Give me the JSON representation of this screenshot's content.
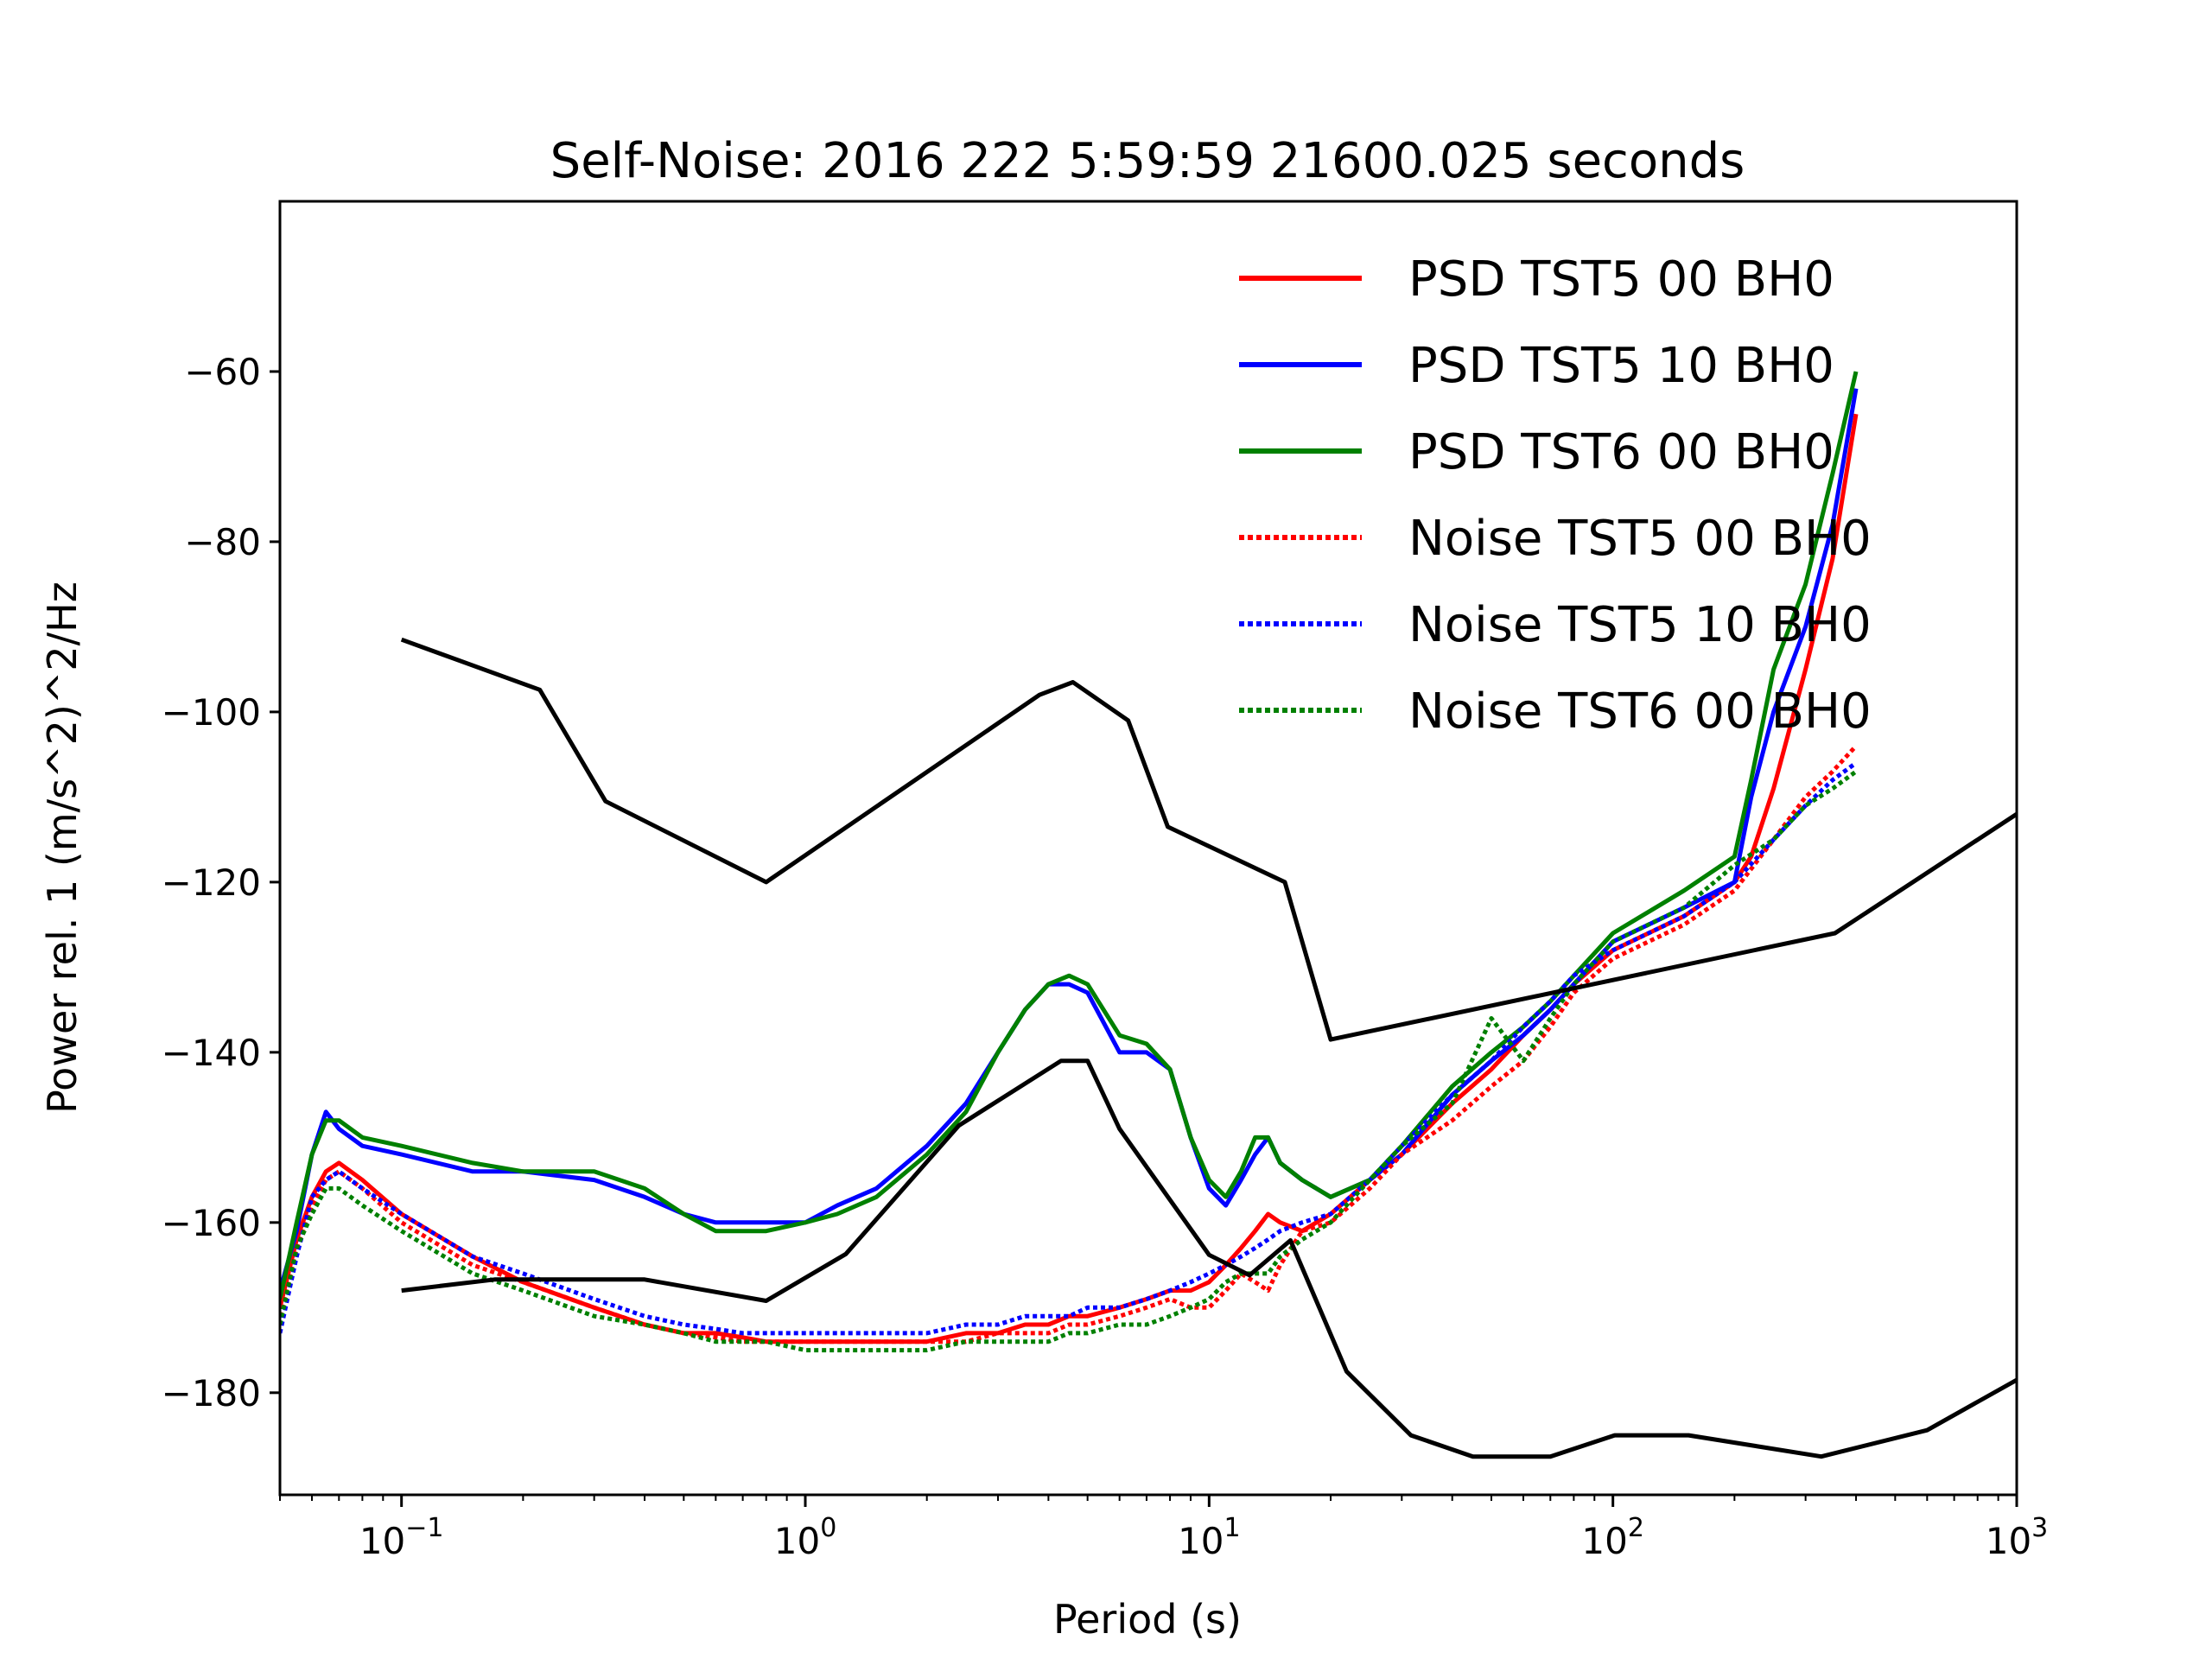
{
  "chart_data": {
    "type": "line",
    "title": "Self-Noise: 2016 222 5:59:59 21600.025 seconds",
    "xlabel": "Period (s)",
    "ylabel": "Power rel. 1 (m/s^2)^2/Hz",
    "x_scale": "log",
    "xlim": [
      0.05,
      1000
    ],
    "ylim": [
      -192,
      -40
    ],
    "x_ticks": [
      {
        "value": 0.1,
        "base": "10",
        "exp": "−1"
      },
      {
        "value": 1,
        "base": "10",
        "exp": "0"
      },
      {
        "value": 10,
        "base": "10",
        "exp": "1"
      },
      {
        "value": 100,
        "base": "10",
        "exp": "2"
      },
      {
        "value": 1000,
        "base": "10",
        "exp": "3"
      }
    ],
    "y_ticks": [
      {
        "value": -60,
        "label": "−60"
      },
      {
        "value": -80,
        "label": "−80"
      },
      {
        "value": -100,
        "label": "−100"
      },
      {
        "value": -120,
        "label": "−120"
      },
      {
        "value": -140,
        "label": "−140"
      },
      {
        "value": -160,
        "label": "−160"
      },
      {
        "value": -180,
        "label": "−180"
      }
    ],
    "legend_position": "top-right",
    "grid": false,
    "series": [
      {
        "name": "PSD TST5 00 BH0",
        "color": "#ff0000",
        "style": "solid",
        "x": [
          0.05,
          0.055,
          0.06,
          0.065,
          0.07,
          0.08,
          0.1,
          0.15,
          0.2,
          0.3,
          0.4,
          0.5,
          0.6,
          0.7,
          0.8,
          1.0,
          1.2,
          1.5,
          2.0,
          2.5,
          3.0,
          3.5,
          4.0,
          4.5,
          5.0,
          6.0,
          7.0,
          8.0,
          9.0,
          10,
          11,
          12,
          13,
          14,
          15,
          17,
          20,
          25,
          30,
          40,
          50,
          60,
          70,
          80,
          100,
          150,
          200,
          220,
          250,
          300,
          350,
          400
        ],
        "y": [
          -170,
          -162,
          -157,
          -154,
          -153,
          -155,
          -159,
          -164,
          -167,
          -170,
          -172,
          -173,
          -173,
          -173.5,
          -174,
          -174,
          -174,
          -174,
          -174,
          -173,
          -173,
          -172,
          -172,
          -171,
          -171,
          -170,
          -169,
          -168,
          -168,
          -167,
          -165,
          -163,
          -161,
          -159,
          -160,
          -161,
          -159,
          -155,
          -152,
          -146,
          -142,
          -138,
          -135,
          -132,
          -128,
          -124,
          -120,
          -117,
          -109,
          -95,
          -82,
          -65
        ]
      },
      {
        "name": "PSD TST5 10 BH0",
        "color": "#0000ff",
        "style": "solid",
        "x": [
          0.05,
          0.055,
          0.06,
          0.065,
          0.07,
          0.08,
          0.1,
          0.15,
          0.2,
          0.3,
          0.4,
          0.5,
          0.6,
          0.7,
          0.8,
          1.0,
          1.2,
          1.5,
          2.0,
          2.5,
          3.0,
          3.5,
          4.0,
          4.5,
          5.0,
          6.0,
          7.0,
          8.0,
          9.0,
          10,
          11,
          12,
          13,
          14,
          15,
          17,
          20,
          25,
          30,
          40,
          50,
          60,
          70,
          80,
          100,
          150,
          200,
          220,
          250,
          300,
          350,
          400
        ],
        "y": [
          -168,
          -161,
          -152,
          -147,
          -149,
          -151,
          -152,
          -154,
          -154,
          -155,
          -157,
          -159,
          -160,
          -160,
          -160,
          -160,
          -158,
          -156,
          -151,
          -146,
          -140,
          -135,
          -132,
          -132,
          -133,
          -140,
          -140,
          -142,
          -150,
          -156,
          -158,
          -155,
          -152,
          -150,
          -153,
          -155,
          -157,
          -155,
          -152,
          -145,
          -141,
          -138,
          -135,
          -132,
          -127,
          -123,
          -120,
          -110,
          -100,
          -90,
          -78,
          -62
        ]
      },
      {
        "name": "PSD TST6 00 BH0",
        "color": "#008000",
        "style": "solid",
        "x": [
          0.05,
          0.055,
          0.06,
          0.065,
          0.07,
          0.08,
          0.1,
          0.15,
          0.2,
          0.3,
          0.4,
          0.5,
          0.6,
          0.7,
          0.8,
          1.0,
          1.2,
          1.5,
          2.0,
          2.5,
          3.0,
          3.5,
          4.0,
          4.5,
          5.0,
          6.0,
          7.0,
          8.0,
          9.0,
          10,
          11,
          12,
          13,
          14,
          15,
          17,
          20,
          25,
          30,
          40,
          50,
          60,
          70,
          80,
          100,
          150,
          200,
          220,
          250,
          300,
          350,
          400
        ],
        "y": [
          -169,
          -160,
          -152,
          -148,
          -148,
          -150,
          -151,
          -153,
          -154,
          -154,
          -156,
          -159,
          -161,
          -161,
          -161,
          -160,
          -159,
          -157,
          -152,
          -147,
          -140,
          -135,
          -132,
          -131,
          -132,
          -138,
          -139,
          -142,
          -150,
          -155,
          -157,
          -154,
          -150,
          -150,
          -153,
          -155,
          -157,
          -155,
          -151,
          -144,
          -140,
          -137,
          -134,
          -131,
          -126,
          -121,
          -117,
          -108,
          -95,
          -85,
          -72,
          -60
        ]
      },
      {
        "name": "Noise TST5 00 BH0",
        "color": "#ff0000",
        "style": "dotted",
        "x": [
          0.05,
          0.055,
          0.06,
          0.065,
          0.07,
          0.08,
          0.1,
          0.15,
          0.2,
          0.3,
          0.4,
          0.5,
          0.6,
          0.7,
          0.8,
          1.0,
          1.2,
          1.5,
          2.0,
          2.5,
          3.0,
          3.5,
          4.0,
          4.5,
          5.0,
          6.0,
          7.0,
          8.0,
          9.0,
          10,
          11,
          12,
          13,
          14,
          15,
          17,
          20,
          25,
          30,
          40,
          50,
          60,
          70,
          80,
          100,
          150,
          200,
          250,
          300,
          350,
          400
        ],
        "y": [
          -171,
          -163,
          -158,
          -155,
          -154,
          -156,
          -160,
          -165,
          -167,
          -170,
          -172,
          -173,
          -173.5,
          -174,
          -174,
          -174,
          -174,
          -174,
          -174,
          -174,
          -173,
          -173,
          -173,
          -172,
          -172,
          -171,
          -170,
          -169,
          -170,
          -170,
          -168,
          -166,
          -167,
          -168,
          -165,
          -161,
          -160,
          -156,
          -152,
          -148,
          -144,
          -141,
          -137,
          -133,
          -129,
          -125,
          -121,
          -115,
          -110,
          -107,
          -104
        ]
      },
      {
        "name": "Noise TST5 10 BH0",
        "color": "#0000ff",
        "style": "dotted",
        "x": [
          0.05,
          0.055,
          0.06,
          0.065,
          0.07,
          0.08,
          0.1,
          0.15,
          0.2,
          0.3,
          0.4,
          0.5,
          0.6,
          0.7,
          0.8,
          1.0,
          1.2,
          1.5,
          2.0,
          2.5,
          3.0,
          3.5,
          4.0,
          4.5,
          5.0,
          6.0,
          7.0,
          8.0,
          9.0,
          10,
          11,
          12,
          13,
          14,
          15,
          17,
          20,
          25,
          30,
          40,
          50,
          60,
          70,
          80,
          100,
          150,
          200,
          250,
          300,
          350,
          400
        ],
        "y": [
          -173,
          -164,
          -157,
          -155,
          -154,
          -156,
          -159,
          -164,
          -166,
          -169,
          -171,
          -172,
          -172.5,
          -173,
          -173,
          -173,
          -173,
          -173,
          -173,
          -172,
          -172,
          -171,
          -171,
          -171,
          -170,
          -170,
          -169,
          -168,
          -167,
          -166,
          -165,
          -164,
          -163,
          -162,
          -161,
          -160,
          -159,
          -155,
          -151,
          -145,
          -141,
          -137,
          -134,
          -131,
          -128,
          -124,
          -120,
          -115,
          -111,
          -108,
          -106
        ]
      },
      {
        "name": "Noise TST6 00 BH0",
        "color": "#008000",
        "style": "dotted",
        "x": [
          0.05,
          0.055,
          0.06,
          0.065,
          0.07,
          0.08,
          0.1,
          0.15,
          0.2,
          0.3,
          0.4,
          0.5,
          0.6,
          0.7,
          0.8,
          1.0,
          1.2,
          1.5,
          2.0,
          2.5,
          3.0,
          3.5,
          4.0,
          4.5,
          5.0,
          6.0,
          7.0,
          8.0,
          9.0,
          10,
          11,
          12,
          13,
          14,
          15,
          17,
          20,
          25,
          30,
          40,
          50,
          60,
          70,
          80,
          100,
          150,
          200,
          250,
          300,
          350,
          400
        ],
        "y": [
          -172,
          -163,
          -159,
          -156,
          -156,
          -158,
          -161,
          -166,
          -168,
          -171,
          -172,
          -173,
          -174,
          -174,
          -174,
          -175,
          -175,
          -175,
          -175,
          -174,
          -174,
          -174,
          -174,
          -173,
          -173,
          -172,
          -172,
          -171,
          -170,
          -169,
          -167,
          -166,
          -166,
          -166,
          -164,
          -162,
          -160,
          -155,
          -151,
          -146,
          -136,
          -141,
          -136,
          -132,
          -127,
          -123,
          -118,
          -115,
          -111,
          -109,
          -107
        ]
      },
      {
        "name": "",
        "color": "#000000",
        "style": "solid",
        "x": [
          0.1,
          0.22,
          0.32,
          0.8,
          3.8,
          4.6,
          6.3,
          7.9,
          15.4,
          20,
          354.8,
          1000
        ],
        "y": [
          -91.5,
          -97.4,
          -110.5,
          -120,
          -98,
          -96.5,
          -101,
          -113.5,
          -120,
          -138.5,
          -126,
          -112
        ]
      },
      {
        "name": "",
        "color": "#000000",
        "style": "solid",
        "x": [
          0.1,
          0.17,
          0.4,
          0.8,
          1.26,
          2.4,
          4.3,
          5.0,
          6.0,
          10,
          12.6,
          15.9,
          21.9,
          31.6,
          45,
          70,
          101,
          154,
          328,
          600,
          1000
        ],
        "y": [
          -168,
          -166.7,
          -166.7,
          -169.2,
          -163.7,
          -148.6,
          -141,
          -141,
          -149,
          -163.8,
          -166.2,
          -162.1,
          -177.5,
          -185,
          -187.5,
          -187.5,
          -185,
          -185,
          -187.5,
          -184.4,
          -178.5
        ]
      }
    ]
  }
}
